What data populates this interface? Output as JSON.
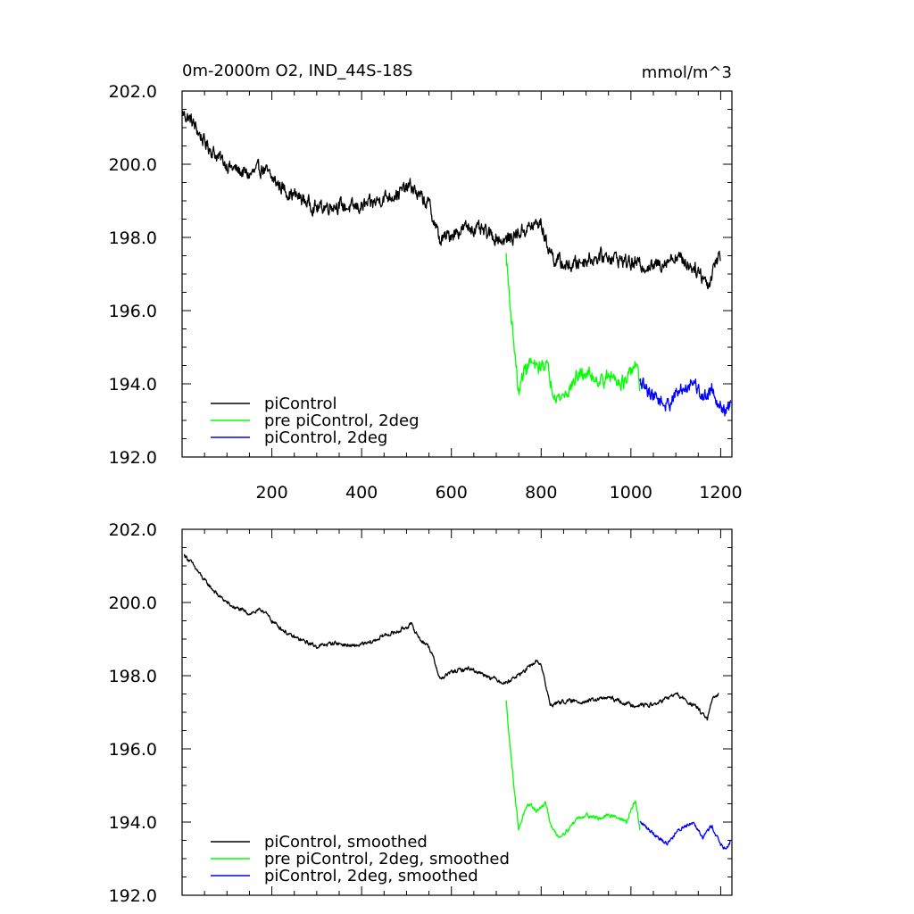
{
  "chart_data": [
    {
      "type": "line",
      "title": "0m-2000m O2, IND_44S-18S",
      "units": "mmol/m^3",
      "xlim": [
        0,
        1225
      ],
      "ylim": [
        192,
        202
      ],
      "x_tick_labels": [
        "200",
        "400",
        "600",
        "800",
        "1000",
        "1200"
      ],
      "y_tick_labels": [
        "192.0",
        "194.0",
        "196.0",
        "198.0",
        "200.0",
        "202.0"
      ],
      "legend_position": "bottom-left",
      "noise": 0.35,
      "series": [
        {
          "name": "piControl",
          "color": "#000000",
          "x": [
            1,
            20,
            50,
            80,
            110,
            150,
            180,
            200,
            240,
            260,
            300,
            340,
            380,
            420,
            450,
            480,
            510,
            530,
            550,
            565,
            575,
            600,
            640,
            680,
            720,
            760,
            800,
            810,
            830,
            860,
            900,
            950,
            1000,
            1050,
            1100,
            1150,
            1175,
            1185,
            1200
          ],
          "values": [
            201.4,
            201.2,
            200.6,
            200.2,
            199.9,
            199.7,
            199.9,
            199.6,
            199.2,
            199.1,
            198.8,
            198.9,
            198.8,
            198.9,
            199.1,
            199.2,
            199.4,
            199.1,
            198.9,
            198.3,
            197.9,
            198.1,
            198.3,
            198.1,
            197.9,
            198.2,
            198.4,
            197.9,
            197.4,
            197.2,
            197.4,
            197.5,
            197.3,
            197.2,
            197.5,
            197.1,
            196.7,
            197.3,
            197.5
          ]
        },
        {
          "name": "pre piControl, 2deg",
          "color": "#00ff00",
          "x": [
            722,
            732,
            742,
            750,
            760,
            775,
            790,
            810,
            825,
            840,
            860,
            880,
            900,
            930,
            960,
            990,
            1010,
            1020
          ],
          "values": [
            197.5,
            196.0,
            194.8,
            193.7,
            194.3,
            194.6,
            194.4,
            194.6,
            193.9,
            193.6,
            193.8,
            194.2,
            194.3,
            194.1,
            194.2,
            194.0,
            194.6,
            193.9
          ]
        },
        {
          "name": "piControl, 2deg",
          "color": "#0000ff",
          "x": [
            1020,
            1040,
            1060,
            1080,
            1100,
            1120,
            1140,
            1160,
            1180,
            1200,
            1215,
            1222
          ],
          "values": [
            194.0,
            193.8,
            193.6,
            193.4,
            193.7,
            193.9,
            194.1,
            193.6,
            193.9,
            193.4,
            193.2,
            193.5
          ]
        }
      ]
    },
    {
      "type": "line",
      "xlim": [
        0,
        1225
      ],
      "ylim": [
        192,
        202
      ],
      "x_tick_labels": [],
      "y_tick_labels": [
        "192.0",
        "194.0",
        "196.0",
        "198.0",
        "200.0",
        "202.0"
      ],
      "legend_position": "bottom-left",
      "noise": 0.1,
      "series": [
        {
          "name": "piControl, smoothed",
          "color": "#000000",
          "x": [
            5,
            20,
            50,
            80,
            110,
            150,
            180,
            200,
            240,
            260,
            300,
            340,
            380,
            420,
            450,
            480,
            510,
            530,
            550,
            565,
            575,
            600,
            640,
            680,
            720,
            760,
            790,
            800,
            820,
            850,
            900,
            950,
            1000,
            1050,
            1100,
            1150,
            1170,
            1180,
            1195
          ],
          "values": [
            201.3,
            201.1,
            200.6,
            200.2,
            199.9,
            199.7,
            199.8,
            199.5,
            199.1,
            199.0,
            198.8,
            198.9,
            198.8,
            198.9,
            199.1,
            199.2,
            199.4,
            199.0,
            198.8,
            198.3,
            197.9,
            198.1,
            198.2,
            198.0,
            197.8,
            198.1,
            198.4,
            198.3,
            197.2,
            197.3,
            197.3,
            197.4,
            197.2,
            197.2,
            197.5,
            197.1,
            196.8,
            197.3,
            197.5
          ]
        },
        {
          "name": "pre piControl, 2deg, smoothed",
          "color": "#00ff00",
          "x": [
            722,
            732,
            742,
            750,
            760,
            775,
            790,
            810,
            825,
            840,
            860,
            880,
            900,
            930,
            960,
            990,
            1010,
            1020
          ],
          "values": [
            197.3,
            195.9,
            194.7,
            193.8,
            194.2,
            194.5,
            194.3,
            194.5,
            193.8,
            193.6,
            193.8,
            194.1,
            194.2,
            194.1,
            194.2,
            194.0,
            194.6,
            193.8
          ]
        },
        {
          "name": "piControl, 2deg, smoothed",
          "color": "#0000ff",
          "x": [
            1020,
            1040,
            1060,
            1080,
            1100,
            1120,
            1140,
            1160,
            1180,
            1200,
            1212,
            1222
          ],
          "values": [
            194.0,
            193.8,
            193.6,
            193.4,
            193.7,
            193.9,
            194.0,
            193.6,
            193.9,
            193.4,
            193.2,
            193.5
          ]
        }
      ]
    }
  ]
}
